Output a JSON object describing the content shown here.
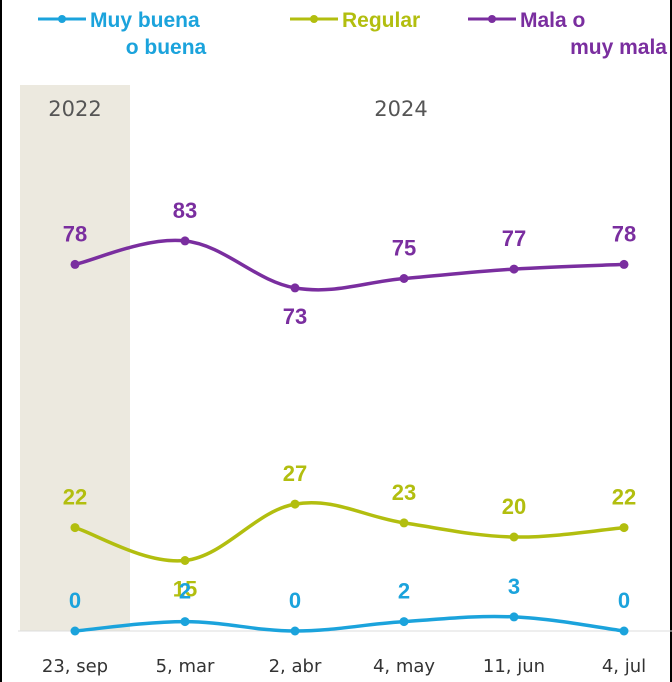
{
  "colors": {
    "good": "#1BA3DC",
    "regular": "#B2BE0F",
    "bad": "#7A2E9F",
    "band": "#ECE9DF",
    "grid": "#DDDDDD"
  },
  "legend": [
    {
      "key": "good",
      "lines": [
        "Muy buena",
        "o buena"
      ]
    },
    {
      "key": "regular",
      "lines": [
        "Regular"
      ]
    },
    {
      "key": "bad",
      "lines": [
        "Mala o",
        "muy mala"
      ]
    }
  ],
  "periods": [
    {
      "label": "2022",
      "span": [
        0,
        0
      ],
      "shaded": true
    },
    {
      "label": "2024",
      "span": [
        1,
        5
      ],
      "shaded": false
    }
  ],
  "chart_data": {
    "type": "line",
    "categories": [
      "23, sep",
      "5, mar",
      "2, abr",
      "4, may",
      "11, jun",
      "4, jul"
    ],
    "series": [
      {
        "name": "Mala o muy mala",
        "key": "bad",
        "values": [
          78,
          83,
          73,
          75,
          77,
          78
        ]
      },
      {
        "name": "Regular",
        "key": "regular",
        "values": [
          22,
          15,
          27,
          23,
          20,
          22
        ]
      },
      {
        "name": "Muy buena o buena",
        "key": "good",
        "values": [
          0,
          2,
          0,
          2,
          3,
          0
        ]
      }
    ],
    "ylim": [
      0,
      100
    ],
    "grid": false,
    "legend_position": "top"
  }
}
